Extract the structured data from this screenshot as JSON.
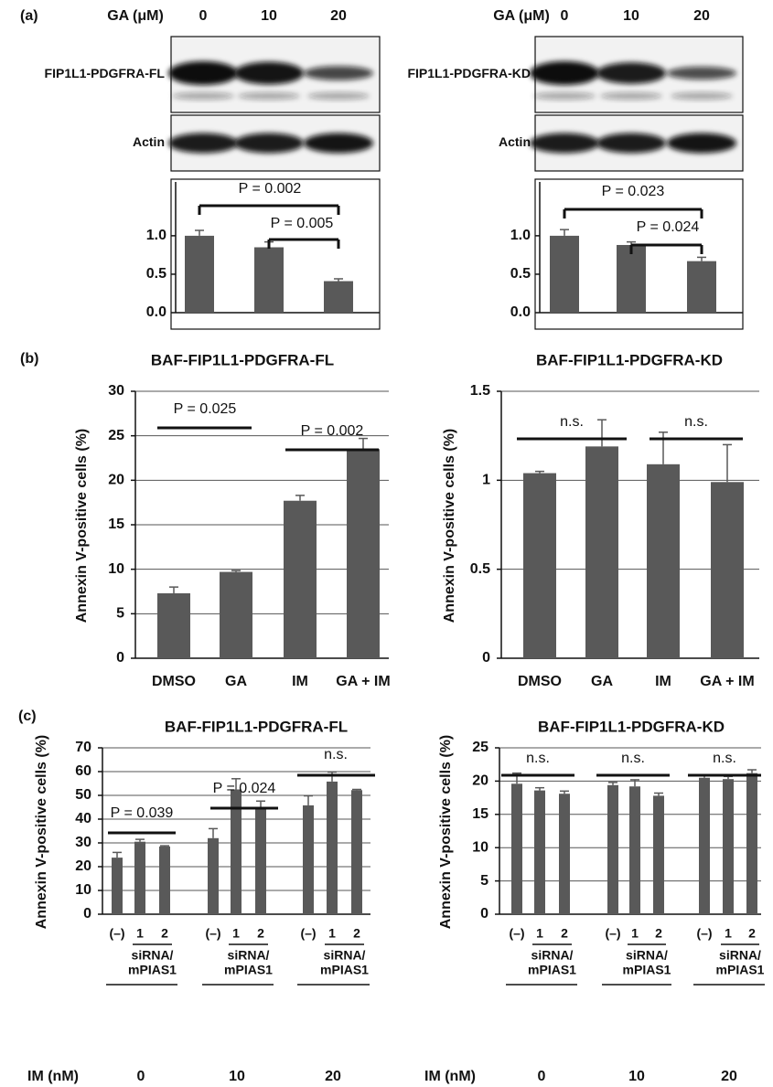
{
  "chart_data": [
    {
      "panel": "(a)",
      "type": "bar",
      "blot": {
        "lanes_label": "GA (μM)",
        "lanes": [
          "0",
          "10",
          "20"
        ],
        "rows": [
          "FIP1L1-PDGFRA-FL",
          "Actin"
        ]
      },
      "values": [
        1.0,
        0.85,
        0.41
      ],
      "errors": [
        0.07,
        0.07,
        0.03
      ],
      "color": "#595959",
      "ylim": [
        0,
        1.7
      ],
      "yticks": [
        {
          "value": 0,
          "label": "0.0"
        },
        0.5,
        {
          "value": 1,
          "label": "1.0"
        }
      ],
      "grid": false,
      "annotations": [
        "P = 0.002",
        "P = 0.005"
      ]
    },
    {
      "type": "bar",
      "blot": {
        "lanes_label": "GA (μM)",
        "lanes": [
          "0",
          "10",
          "20"
        ],
        "rows": [
          "FIP1L1-PDGFRA-KD",
          "Actin"
        ]
      },
      "values": [
        1.0,
        0.88,
        0.67
      ],
      "errors": [
        0.08,
        0.04,
        0.05
      ],
      "color": "#595959",
      "ylim": [
        0,
        1.7
      ],
      "yticks": [
        {
          "value": 0,
          "label": "0.0"
        },
        0.5,
        {
          "value": 1,
          "label": "1.0"
        }
      ],
      "grid": false,
      "annotations": [
        "P = 0.023",
        "P = 0.024"
      ]
    },
    {
      "panel": "(b)",
      "type": "bar",
      "title": "BAF-FIP1L1-PDGFRA-FL",
      "ylabel": "Annexin V-positive cells (%)",
      "categories": [
        "DMSO",
        "GA",
        "IM",
        "GA + IM"
      ],
      "values": [
        7.3,
        9.7,
        17.7,
        23.5
      ],
      "errors": [
        0.7,
        0.15,
        0.6,
        1.2
      ],
      "color": "#595959",
      "ylim": [
        0,
        30
      ],
      "yticks": [
        0,
        5,
        10,
        15,
        20,
        25,
        30
      ],
      "grid": true,
      "annotations": [
        "P = 0.025",
        "P = 0.002"
      ]
    },
    {
      "type": "bar",
      "title": "BAF-FIP1L1-PDGFRA-KD",
      "ylabel": "Annexin V-positive cells (%)",
      "categories": [
        "DMSO",
        "GA",
        "IM",
        "GA + IM"
      ],
      "values": [
        1.04,
        1.19,
        1.09,
        0.99
      ],
      "errors": [
        0.01,
        0.15,
        0.18,
        0.21
      ],
      "color": "#595959",
      "ylim": [
        0,
        1.5
      ],
      "yticks": [
        0,
        0.5,
        1,
        1.5
      ],
      "grid": true,
      "annotations": [
        "n.s.",
        "n.s."
      ]
    },
    {
      "panel": "(c)",
      "type": "bar",
      "title": "BAF-FIP1L1-PDGFRA-FL",
      "ylabel": "Annexin V-positive cells (%)",
      "categories": [
        "(–)",
        "1",
        "2",
        "(–)",
        "1",
        "2",
        "(–)",
        "1",
        "2"
      ],
      "group_labels": [
        [
          "siRNA/",
          "mPIAS1"
        ],
        [
          "siRNA/",
          "mPIAS1"
        ],
        [
          "siRNA/",
          "mPIAS1"
        ]
      ],
      "x_title": "IM (nM)",
      "x_groups": [
        "0",
        "10",
        "20"
      ],
      "values": [
        23.8,
        30.5,
        28.5,
        32,
        52.5,
        44.8,
        45.8,
        55.8,
        52.2
      ],
      "errors": [
        2.2,
        1,
        0.3,
        4,
        4.5,
        2.8,
        4,
        4,
        0.3
      ],
      "color": "#595959",
      "ylim": [
        0,
        70
      ],
      "yticks": [
        0,
        10,
        20,
        30,
        40,
        50,
        60,
        70
      ],
      "grid": true,
      "annotations": [
        "P = 0.039",
        "P = 0.024",
        "n.s."
      ]
    },
    {
      "type": "bar",
      "title": "BAF-FIP1L1-PDGFRA-KD",
      "ylabel": "Annexin V-positive cells (%)",
      "categories": [
        "(–)",
        "1",
        "2",
        "(–)",
        "1",
        "2",
        "(–)",
        "1",
        "2"
      ],
      "group_labels": [
        [
          "siRNA/",
          "mPIAS1"
        ],
        [
          "siRNA/",
          "mPIAS1"
        ],
        [
          "siRNA/",
          "mPIAS1"
        ]
      ],
      "x_title": "IM (nM)",
      "x_groups": [
        "0",
        "10",
        "20"
      ],
      "values": [
        19.6,
        18.6,
        18.1,
        19.4,
        19.2,
        17.8,
        20.5,
        20.3,
        21.2
      ],
      "errors": [
        1.6,
        0.4,
        0.4,
        0.4,
        1,
        0.4,
        0.3,
        0.4,
        0.5
      ],
      "color": "#595959",
      "ylim": [
        0,
        25
      ],
      "yticks": [
        0,
        5,
        10,
        15,
        20,
        25
      ],
      "grid": true,
      "annotations": [
        "n.s.",
        "n.s.",
        "n.s."
      ]
    }
  ]
}
